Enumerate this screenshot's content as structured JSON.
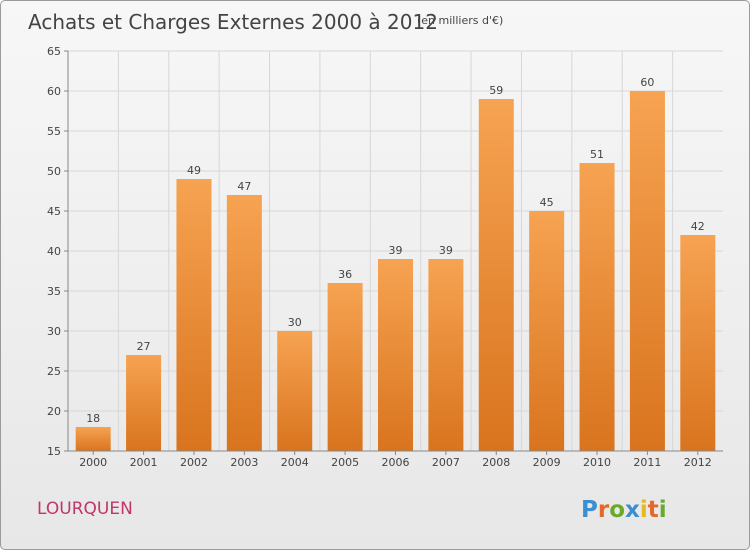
{
  "chart_data": {
    "type": "bar",
    "title": "Achats et Charges Externes 2000 à 2012",
    "unit_label": "(en milliers d'€)",
    "xlabel": "",
    "ylabel": "",
    "categories": [
      "2000",
      "2001",
      "2002",
      "2003",
      "2004",
      "2005",
      "2006",
      "2007",
      "2008",
      "2009",
      "2010",
      "2011",
      "2012"
    ],
    "values": [
      18,
      27,
      49,
      47,
      30,
      36,
      39,
      39,
      59,
      45,
      51,
      60,
      42
    ],
    "ylim": [
      15,
      65
    ],
    "yticks": [
      15,
      20,
      25,
      30,
      35,
      40,
      45,
      50,
      55,
      60,
      65
    ],
    "grid": true,
    "legend": "none",
    "bar_color_light": "#f6a352",
    "bar_color_dark": "#d9741e"
  },
  "footer": {
    "commune": "LOURQUEN",
    "logo": "Proxiti",
    "logo_letters": [
      {
        "char": "P",
        "color": "#3b8fd0"
      },
      {
        "char": "r",
        "color": "#e3682a"
      },
      {
        "char": "o",
        "color": "#6aaa2a"
      },
      {
        "char": "x",
        "color": "#3b8fd0"
      },
      {
        "char": "i",
        "color": "#e8b820"
      },
      {
        "char": "t",
        "color": "#e3682a"
      },
      {
        "char": "i",
        "color": "#6aaa2a"
      }
    ]
  },
  "colors": {
    "title": "#444444",
    "commune": "#c0356b",
    "grid": "#d7d7d7",
    "axis": "#888888"
  }
}
